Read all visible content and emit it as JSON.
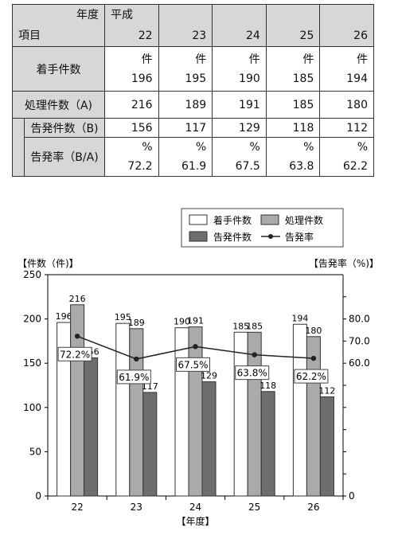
{
  "table": {
    "header_year_label": "年度",
    "header_item_label": "項目",
    "era": "平成",
    "years": [
      "22",
      "23",
      "24",
      "25",
      "26"
    ],
    "rows": [
      {
        "label": "着手件数",
        "unit": "件",
        "values": [
          "196",
          "195",
          "190",
          "185",
          "194"
        ]
      },
      {
        "label": "処理件数（A)",
        "unit": "",
        "values": [
          "216",
          "189",
          "191",
          "185",
          "180"
        ]
      },
      {
        "label": "告発件数（B)",
        "unit": "",
        "values": [
          "156",
          "117",
          "129",
          "118",
          "112"
        ]
      },
      {
        "label": "告発率（B/A)",
        "unit": "%",
        "values": [
          "72.2",
          "61.9",
          "67.5",
          "63.8",
          "62.2"
        ]
      }
    ]
  },
  "chart_data": {
    "type": "bar",
    "categories": [
      "22",
      "23",
      "24",
      "25",
      "26"
    ],
    "series": [
      {
        "name": "着手件数",
        "values": [
          196,
          195,
          190,
          185,
          194
        ],
        "color": "#ffffff"
      },
      {
        "name": "処理件数",
        "values": [
          216,
          189,
          191,
          185,
          180
        ],
        "color": "#aaaaaa"
      },
      {
        "name": "告発件数",
        "values": [
          156,
          117,
          129,
          118,
          112
        ],
        "color": "#6e6e6e"
      },
      {
        "name": "告発率",
        "type": "line",
        "axis": "right",
        "values": [
          72.2,
          61.9,
          67.5,
          63.8,
          62.2
        ],
        "labels": [
          "72.2%",
          "61.9%",
          "67.5%",
          "63.8%",
          "62.2%"
        ],
        "color": "#222222"
      }
    ],
    "bar_value_labels": [
      [
        "196",
        "195",
        "190",
        "185",
        "194"
      ],
      [
        "216",
        "189",
        "191",
        "185",
        "180"
      ],
      [
        "156",
        "117",
        "129",
        "118",
        "112"
      ]
    ],
    "ylabel_left": "【件数（件)】",
    "ylabel_right": "【告発率（%)】",
    "xlabel": "【年度】",
    "ylim_left": [
      0,
      250
    ],
    "yticks_left": [
      "0",
      "50",
      "100",
      "150",
      "200",
      "250"
    ],
    "ylim_right": [
      0,
      100
    ],
    "yticks_right": [
      {
        "value": 0,
        "label": "0"
      },
      {
        "value": 10,
        "label": ""
      },
      {
        "value": 20,
        "label": ""
      },
      {
        "value": 30,
        "label": ""
      },
      {
        "value": 40,
        "label": ""
      },
      {
        "value": 50,
        "label": ""
      },
      {
        "value": 60,
        "label": "60.0"
      },
      {
        "value": 70,
        "label": "70.0"
      },
      {
        "value": 80,
        "label": "80.0"
      },
      {
        "value": 90,
        "label": ""
      }
    ],
    "legend_placement": "top-right",
    "grid": false
  }
}
